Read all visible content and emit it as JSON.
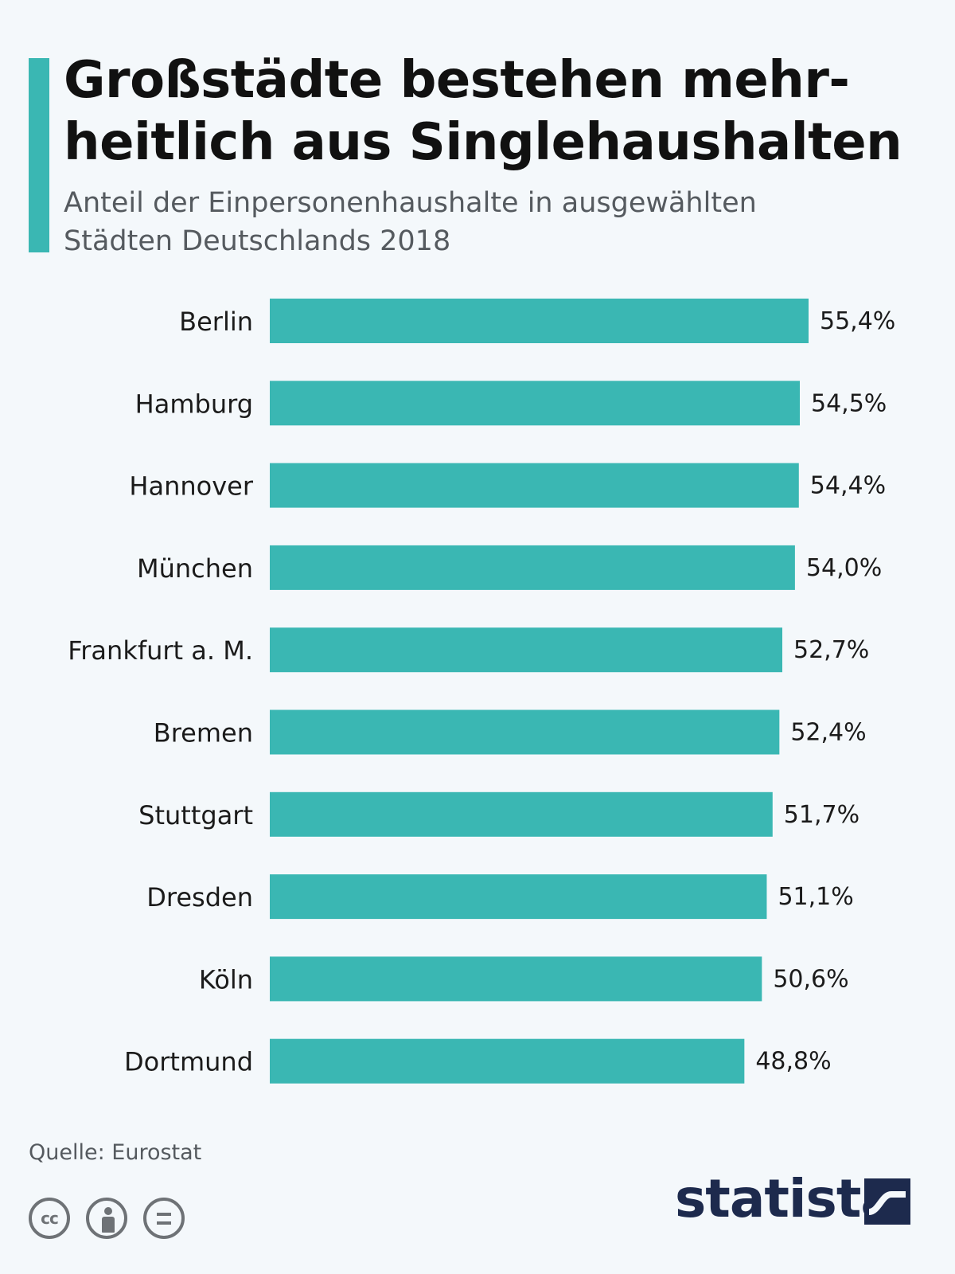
{
  "header": {
    "title_line1": "Großstädte bestehen mehr-",
    "title_line2": "heitlich aus Singlehaushalten",
    "subtitle_line1": "Anteil der Einpersonenhaushalte in ausgewählten",
    "subtitle_line2": "Städten Deutschlands 2018"
  },
  "colors": {
    "accent": "#3ab7b3",
    "bar": "#3ab7b3",
    "background": "#f4f8fb",
    "brand_dark": "#1d2a4d"
  },
  "chart_data": {
    "type": "bar",
    "orientation": "horizontal",
    "title": "Großstädte bestehen mehrheitlich aus Singlehaushalten",
    "subtitle": "Anteil der Einpersonenhaushalte in ausgewählten Städten Deutschlands 2018",
    "categories": [
      "Berlin",
      "Hamburg",
      "Hannover",
      "München",
      "Frankfurt a. M.",
      "Bremen",
      "Stuttgart",
      "Dresden",
      "Köln",
      "Dortmund"
    ],
    "values": [
      55.4,
      54.5,
      54.4,
      54.0,
      52.7,
      52.4,
      51.7,
      51.1,
      50.6,
      48.8
    ],
    "value_labels": [
      "55,4%",
      "54,5%",
      "54,4%",
      "54,0%",
      "52,7%",
      "52,4%",
      "51,7%",
      "51,1%",
      "50,6%",
      "48,8%"
    ],
    "unit": "%",
    "xlim": [
      0,
      55.4
    ],
    "xlabel": "",
    "ylabel": "",
    "grid": false
  },
  "footer": {
    "source": "Quelle: Eurostat",
    "license_icons": [
      "cc-icon",
      "by-icon",
      "nd-icon"
    ],
    "license_cc_text": "cc",
    "brand": "statista"
  }
}
